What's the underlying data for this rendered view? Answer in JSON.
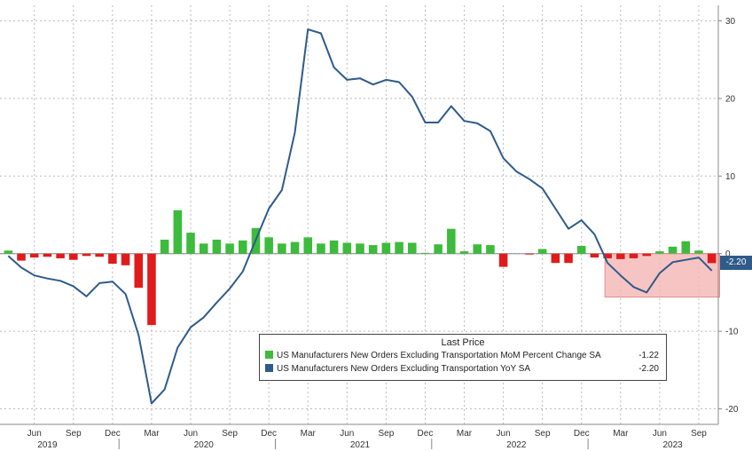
{
  "chart_data": {
    "type": "bar+line",
    "x": [
      "2019-04",
      "2019-05",
      "2019-06",
      "2019-07",
      "2019-08",
      "2019-09",
      "2019-10",
      "2019-11",
      "2019-12",
      "2020-01",
      "2020-02",
      "2020-03",
      "2020-04",
      "2020-05",
      "2020-06",
      "2020-07",
      "2020-08",
      "2020-09",
      "2020-10",
      "2020-11",
      "2020-12",
      "2021-01",
      "2021-02",
      "2021-03",
      "2021-04",
      "2021-05",
      "2021-06",
      "2021-07",
      "2021-08",
      "2021-09",
      "2021-10",
      "2021-11",
      "2021-12",
      "2022-01",
      "2022-02",
      "2022-03",
      "2022-04",
      "2022-05",
      "2022-06",
      "2022-07",
      "2022-08",
      "2022-09",
      "2022-10",
      "2022-11",
      "2022-12",
      "2023-01",
      "2023-02",
      "2023-03",
      "2023-04",
      "2023-05",
      "2023-06",
      "2023-07",
      "2023-08",
      "2023-09",
      "2023-10"
    ],
    "x_ticks": [
      "Jun",
      "Sep",
      "Dec",
      "Mar",
      "Jun",
      "Sep",
      "Dec",
      "Mar",
      "Jun",
      "Sep",
      "Dec",
      "Mar",
      "Jun",
      "Sep",
      "Dec",
      "Mar",
      "Jun",
      "Sep"
    ],
    "x_tick_months": [
      "2019-06",
      "2019-09",
      "2019-12",
      "2020-03",
      "2020-06",
      "2020-09",
      "2020-12",
      "2021-03",
      "2021-06",
      "2021-09",
      "2021-12",
      "2022-03",
      "2022-06",
      "2022-09",
      "2022-12",
      "2023-03",
      "2023-06",
      "2023-09"
    ],
    "years": [
      "2019",
      "2020",
      "2021",
      "2022",
      "2023"
    ],
    "year_months": [
      "2019-07",
      "2020-07",
      "2021-07",
      "2022-07",
      "2023-07"
    ],
    "ylim": [
      -22,
      32
    ],
    "y_ticks": [
      30,
      20,
      10,
      0,
      -10,
      -20
    ],
    "legend_title": "Last Price",
    "series": [
      {
        "name": "US Manufacturers New Orders Excluding Transportation MoM Percent Change SA",
        "type": "bar",
        "last": "-1.22",
        "color_positive": "#3dbb3d",
        "color_negative": "#e01b1b",
        "values": [
          0.4,
          -0.9,
          -0.5,
          -0.4,
          -0.6,
          -0.8,
          -0.3,
          -0.4,
          -1.3,
          -1.5,
          -4.4,
          -9.2,
          1.8,
          5.6,
          2.7,
          1.3,
          1.8,
          1.3,
          1.7,
          3.3,
          2.1,
          1.3,
          1.5,
          2.1,
          1.3,
          1.7,
          1.4,
          1.3,
          1.1,
          1.4,
          1.5,
          1.4,
          0.1,
          1.2,
          3.2,
          0.3,
          1.2,
          1.1,
          -1.7,
          0.0,
          -0.1,
          0.6,
          -1.2,
          -1.2,
          1.0,
          -0.5,
          -0.6,
          -0.7,
          -0.6,
          -0.3,
          0.3,
          0.9,
          1.6,
          0.4,
          -1.22
        ]
      },
      {
        "name": "US Manufacturers New Orders Excluding Transportation YoY SA",
        "type": "line",
        "last": "-2.20",
        "color": "#2e5b8a",
        "values": [
          -0.3,
          -1.8,
          -2.8,
          -3.2,
          -3.5,
          -4.2,
          -5.5,
          -3.8,
          -3.6,
          -5.2,
          -10.5,
          -19.3,
          -17.5,
          -12.1,
          -9.5,
          -8.2,
          -6.3,
          -4.5,
          -2.3,
          1.8,
          5.8,
          8.2,
          15.6,
          28.9,
          28.4,
          24.0,
          22.4,
          22.6,
          21.8,
          22.4,
          22.1,
          20.2,
          16.9,
          16.9,
          19.0,
          17.1,
          16.8,
          15.8,
          12.3,
          10.6,
          9.6,
          8.4,
          5.8,
          3.2,
          4.3,
          2.5,
          -1.2,
          -2.8,
          -4.3,
          -5.0,
          -2.5,
          -1.1,
          -0.8,
          -0.5,
          -2.2
        ]
      }
    ],
    "highlight": {
      "x_start": "2023-02",
      "x_end": "2023-10",
      "y_top": 0,
      "y_bottom": -5.6,
      "color": "#f5b5b5"
    }
  }
}
